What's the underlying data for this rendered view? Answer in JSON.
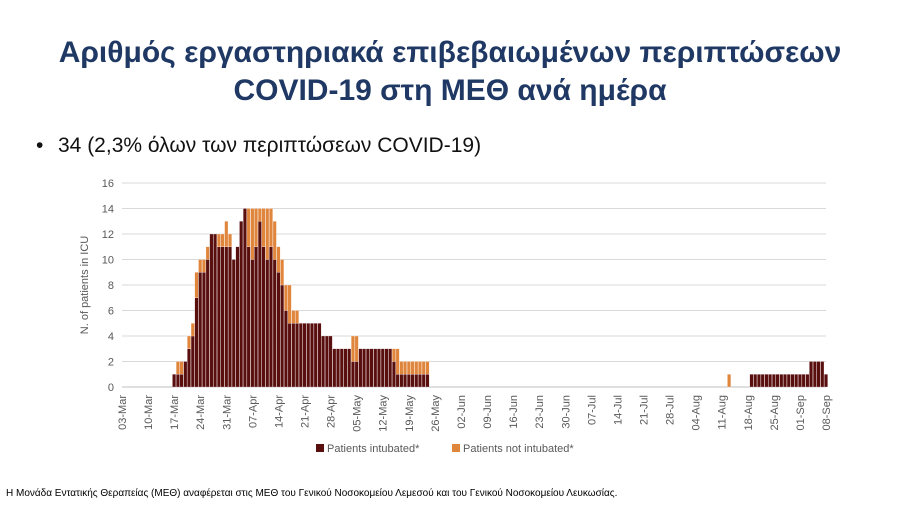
{
  "slide": {
    "title_line1": "Αριθμός εργαστηριακά επιβεβαιωμένων περιπτώσεων",
    "title_line2": "COVID-19 στη ΜΕΘ ανά ημέρα",
    "bullet_text": "34 (2,3% όλων των περιπτώσεων COVID-19)",
    "footnote": "Η Μονάδα Εντατικής Θεραπείας (ΜΕΘ) αναφέρεται στις ΜΕΘ του Γενικού Νοσοκομείου Λεμεσού και του Γενικού Νοσοκομείου Λευκωσίας."
  },
  "chart_data": {
    "type": "bar",
    "stacked": true,
    "title": "",
    "xlabel": "",
    "ylabel": "N. of patients in ICU",
    "ylim": [
      0,
      16
    ],
    "yticks": [
      0,
      2,
      4,
      6,
      8,
      10,
      12,
      14,
      16
    ],
    "grid": true,
    "legend_position": "bottom",
    "x_start": "03-Mar",
    "x_end": "08-Sep",
    "xtick_labels": [
      "03-Mar",
      "10-Mar",
      "17-Mar",
      "24-Mar",
      "31-Mar",
      "07-Apr",
      "14-Apr",
      "21-Apr",
      "28-Apr",
      "05-May",
      "12-May",
      "19-May",
      "26-May",
      "02-Jun",
      "09-Jun",
      "16-Jun",
      "23-Jun",
      "30-Jun",
      "07-Jul",
      "14-Jul",
      "21-Jul",
      "28-Jul",
      "04-Aug",
      "11-Aug",
      "18-Aug",
      "25-Aug",
      "01-Sep",
      "08-Sep"
    ],
    "series": [
      {
        "name": "Patients intubated*",
        "color": "#5a0f0f",
        "values": [
          0,
          0,
          0,
          0,
          0,
          0,
          0,
          0,
          0,
          0,
          0,
          0,
          0,
          0,
          1,
          1,
          1,
          2,
          3,
          4,
          7,
          9,
          9,
          10,
          12,
          12,
          11,
          11,
          11,
          11,
          10,
          11,
          13,
          14,
          11,
          10,
          11,
          13,
          11,
          10,
          11,
          10,
          9,
          8,
          6,
          5,
          5,
          5,
          5,
          5,
          5,
          5,
          5,
          5,
          4,
          4,
          4,
          3,
          3,
          3,
          3,
          3,
          2,
          2,
          3,
          3,
          3,
          3,
          3,
          3,
          3,
          3,
          3,
          2,
          1,
          1,
          1,
          1,
          1,
          1,
          1,
          1,
          1,
          0,
          0,
          0,
          0,
          0,
          0,
          0,
          0,
          0,
          0,
          0,
          0,
          0,
          0,
          0,
          0,
          0,
          0,
          0,
          0,
          0,
          0,
          0,
          0,
          0,
          0,
          0,
          0,
          0,
          0,
          0,
          0,
          0,
          0,
          0,
          0,
          0,
          0,
          0,
          0,
          0,
          0,
          0,
          0,
          0,
          0,
          0,
          0,
          0,
          0,
          0,
          0,
          0,
          0,
          0,
          0,
          0,
          0,
          0,
          0,
          0,
          0,
          0,
          0,
          0,
          0,
          0,
          0,
          0,
          0,
          0,
          0,
          0,
          0,
          0,
          0,
          0,
          0,
          0,
          0,
          0,
          0,
          0,
          0,
          0,
          0,
          1,
          1,
          1,
          1,
          1,
          1,
          1,
          1,
          1,
          1,
          1,
          1,
          1,
          1,
          1,
          1,
          2,
          2,
          2,
          2,
          1
        ]
      },
      {
        "name": "Patients not intubated*",
        "color": "#e0853c",
        "values": [
          0,
          0,
          0,
          0,
          0,
          0,
          0,
          0,
          0,
          0,
          0,
          0,
          0,
          0,
          0,
          1,
          1,
          0,
          1,
          1,
          2,
          1,
          1,
          1,
          0,
          0,
          1,
          1,
          2,
          1,
          0,
          0,
          0,
          0,
          3,
          4,
          3,
          1,
          3,
          4,
          3,
          3,
          2,
          2,
          2,
          3,
          1,
          1,
          0,
          0,
          0,
          0,
          0,
          0,
          0,
          0,
          0,
          0,
          0,
          0,
          0,
          0,
          2,
          2,
          0,
          0,
          0,
          0,
          0,
          0,
          0,
          0,
          0,
          1,
          2,
          1,
          1,
          1,
          1,
          1,
          1,
          1,
          1,
          0,
          0,
          0,
          0,
          0,
          0,
          0,
          0,
          0,
          0,
          0,
          0,
          0,
          0,
          0,
          0,
          0,
          0,
          0,
          0,
          0,
          0,
          0,
          0,
          0,
          0,
          0,
          0,
          0,
          0,
          0,
          0,
          0,
          0,
          0,
          0,
          0,
          0,
          0,
          0,
          0,
          0,
          0,
          0,
          0,
          0,
          0,
          0,
          0,
          0,
          0,
          0,
          0,
          0,
          0,
          0,
          0,
          0,
          0,
          0,
          0,
          0,
          0,
          0,
          0,
          0,
          0,
          0,
          0,
          0,
          0,
          0,
          0,
          0,
          0,
          0,
          0,
          0,
          0,
          0,
          1,
          0,
          0,
          0,
          0,
          0,
          0,
          0,
          0,
          0,
          0,
          0,
          0,
          0,
          0,
          0,
          0,
          0,
          0,
          0,
          0,
          0
        ]
      }
    ]
  }
}
